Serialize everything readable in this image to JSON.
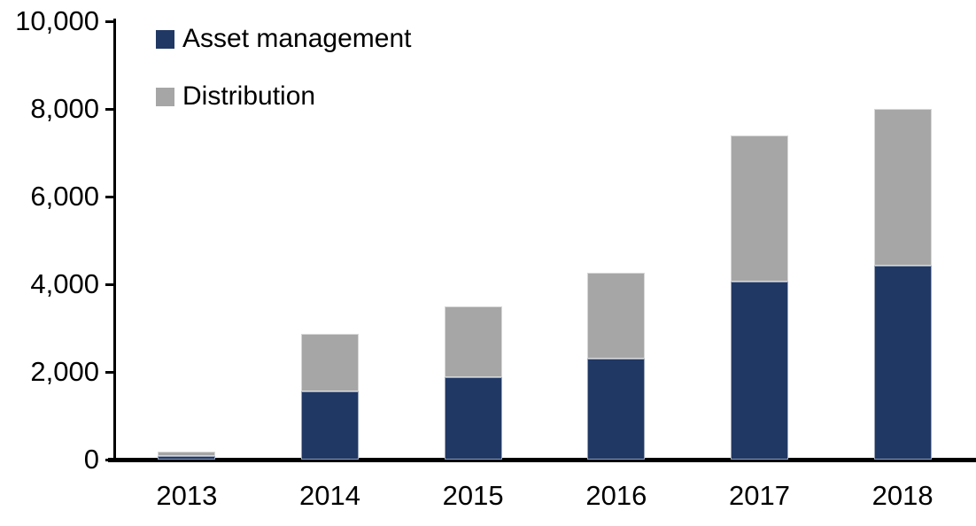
{
  "legend": [
    {
      "label": "Asset management",
      "color": "#203864"
    },
    {
      "label": "Distribution",
      "color": "#a6a6a6"
    }
  ],
  "chart_data": {
    "type": "bar",
    "stacked": true,
    "title": "",
    "xlabel": "",
    "ylabel": "",
    "categories": [
      "2013",
      "2014",
      "2015",
      "2016",
      "2017",
      "2018"
    ],
    "series": [
      {
        "name": "Asset management",
        "color": "#203864",
        "values": [
          80,
          1560,
          1880,
          2300,
          4060,
          4420
        ]
      },
      {
        "name": "Distribution",
        "color": "#a6a6a6",
        "values": [
          100,
          1310,
          1620,
          1960,
          3340,
          3580
        ]
      }
    ],
    "totals": [
      180,
      2870,
      3500,
      4260,
      7400,
      8000
    ],
    "ylim": [
      0,
      10000
    ],
    "y_tick_labels": [
      "0",
      "2,000",
      "4,000",
      "6,000",
      "8,000",
      "10,000"
    ],
    "y_tick_values": [
      0,
      2000,
      4000,
      6000,
      8000,
      10000
    ],
    "grid": false,
    "legend_position": "top-left-inside",
    "axis_color": "#000000",
    "background_color": "#ffffff"
  }
}
